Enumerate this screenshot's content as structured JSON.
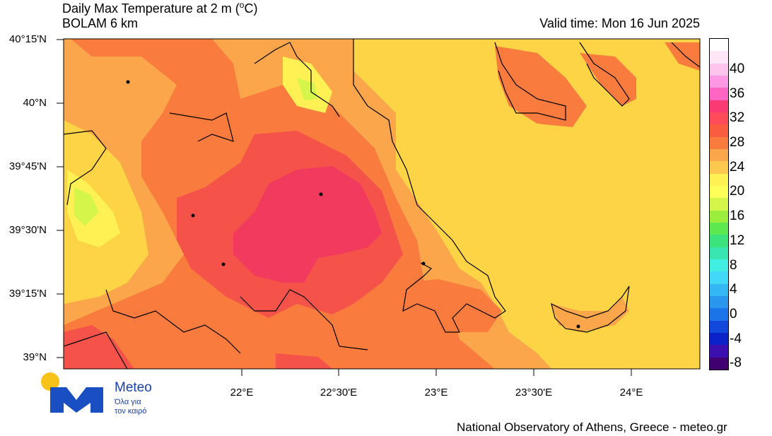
{
  "title": "Daily Max Temperature at 2 m (",
  "title_unit": "C)",
  "title_degree": "o",
  "model": "BOLAM 6 km",
  "valid_time": "Valid time: Mon 16 Jun 2025",
  "lat_labels": [
    "40°15'N",
    "40°N",
    "39°45'N",
    "39°30'N",
    "39°15'N",
    "39°N"
  ],
  "lon_labels": [
    "22°E",
    "22°30'E",
    "23°E",
    "23°30'E",
    "24°E"
  ],
  "colorbar": {
    "labels": [
      "40",
      "36",
      "32",
      "28",
      "24",
      "20",
      "16",
      "12",
      "8",
      "4",
      "0",
      "-4",
      "-8"
    ],
    "colors_top_to_bottom": [
      "#ffffff",
      "#ffe6f6",
      "#ffc4ee",
      "#ff98e4",
      "#ff66c4",
      "#fa3a72",
      "#ff4b5a",
      "#fa5c40",
      "#f97b3e",
      "#fba64a",
      "#fdc84e",
      "#fff054",
      "#ffff5a",
      "#d6f54a",
      "#9cee3c",
      "#5de850",
      "#3ce27c",
      "#39e6b2",
      "#40eee2",
      "#42d8f8",
      "#34b8f4",
      "#2a96ee",
      "#1b74e8",
      "#1248dc",
      "#0b22c8",
      "#3c10b0",
      "#400070"
    ]
  },
  "logo": {
    "brand": "Meteo",
    "tagline_1": "Όλα για",
    "tagline_2": "τον καιρό"
  },
  "credit": "National Observatory of Athens, Greece - meteo.gr"
}
